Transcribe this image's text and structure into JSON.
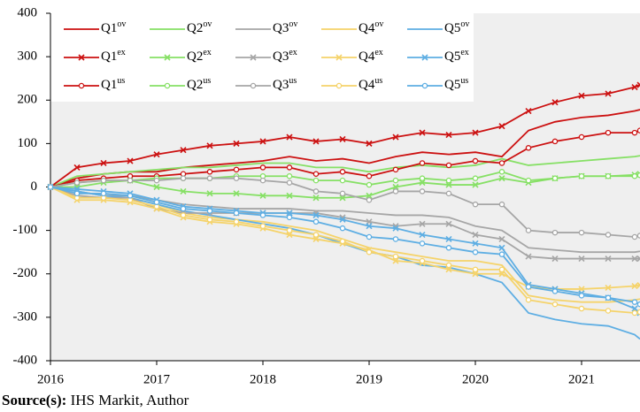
{
  "chart_data": {
    "type": "line",
    "x": [
      2016,
      2016.25,
      2016.5,
      2016.75,
      2017,
      2017.25,
      2017.5,
      2017.75,
      2018,
      2018.25,
      2018.5,
      2018.75,
      2019,
      2019.25,
      2019.5,
      2019.75,
      2020,
      2020.25,
      2020.5,
      2020.75,
      2021,
      2021.25,
      2021.5,
      2021.55
    ],
    "xlim": [
      2016,
      2021.55
    ],
    "xticks": [
      2016,
      2017,
      2018,
      2019,
      2020,
      2021
    ],
    "ylim": [
      -400,
      400
    ],
    "yticks": [
      -400,
      -300,
      -200,
      -100,
      0,
      100,
      200,
      300,
      400
    ],
    "series": [
      {
        "name": "Q1ov",
        "color": "#cc1111",
        "marker": "none",
        "values": [
          0,
          20,
          30,
          35,
          35,
          45,
          50,
          55,
          60,
          70,
          60,
          65,
          55,
          70,
          80,
          75,
          80,
          70,
          130,
          150,
          160,
          165,
          175,
          178
        ]
      },
      {
        "name": "Q2ov",
        "color": "#86e065",
        "marker": "none",
        "values": [
          0,
          25,
          30,
          35,
          40,
          45,
          45,
          50,
          55,
          55,
          45,
          45,
          35,
          45,
          50,
          45,
          50,
          65,
          50,
          55,
          60,
          65,
          70,
          72
        ]
      },
      {
        "name": "Q3ov",
        "color": "#a6a6a6",
        "marker": "none",
        "values": [
          0,
          -10,
          -20,
          -20,
          -30,
          -40,
          -45,
          -50,
          -50,
          -50,
          -55,
          -55,
          -60,
          -65,
          -65,
          -70,
          -90,
          -100,
          -140,
          -145,
          -150,
          -150,
          -150,
          -148
        ]
      },
      {
        "name": "Q4ov",
        "color": "#f5d36a",
        "marker": "none",
        "values": [
          0,
          -20,
          -25,
          -25,
          -40,
          -60,
          -70,
          -75,
          -80,
          -90,
          -100,
          -120,
          -140,
          -150,
          -160,
          -170,
          -170,
          -180,
          -250,
          -260,
          -265,
          -265,
          -260,
          -258
        ]
      },
      {
        "name": "Q5ov",
        "color": "#5eaee3",
        "marker": "none",
        "values": [
          0,
          -10,
          -20,
          -25,
          -40,
          -55,
          -65,
          -75,
          -85,
          -95,
          -110,
          -130,
          -150,
          -160,
          -180,
          -185,
          -200,
          -220,
          -290,
          -305,
          -315,
          -320,
          -340,
          -350
        ]
      },
      {
        "name": "Q1ex",
        "color": "#cc1111",
        "marker": "x",
        "values": [
          0,
          45,
          55,
          60,
          75,
          85,
          95,
          100,
          105,
          115,
          105,
          110,
          100,
          115,
          125,
          120,
          125,
          140,
          175,
          195,
          210,
          215,
          230,
          235
        ]
      },
      {
        "name": "Q2ex",
        "color": "#86e065",
        "marker": "x",
        "values": [
          0,
          0,
          10,
          15,
          0,
          -10,
          -15,
          -15,
          -20,
          -20,
          -25,
          -25,
          -20,
          0,
          10,
          5,
          5,
          20,
          10,
          20,
          25,
          25,
          28,
          30
        ]
      },
      {
        "name": "Q3ex",
        "color": "#a6a6a6",
        "marker": "x",
        "values": [
          0,
          -20,
          -25,
          -25,
          -50,
          -60,
          -60,
          -60,
          -60,
          -60,
          -60,
          -70,
          -80,
          -90,
          -85,
          -85,
          -110,
          -120,
          -160,
          -165,
          -165,
          -165,
          -165,
          -165
        ]
      },
      {
        "name": "Q4ex",
        "color": "#f5d36a",
        "marker": "x",
        "values": [
          0,
          -30,
          -30,
          -35,
          -50,
          -70,
          -80,
          -85,
          -95,
          -110,
          -120,
          -130,
          -145,
          -170,
          -175,
          -190,
          -200,
          -200,
          -230,
          -235,
          -235,
          -232,
          -228,
          -226
        ]
      },
      {
        "name": "Q5ex",
        "color": "#5eaee3",
        "marker": "x",
        "values": [
          0,
          -5,
          -10,
          -15,
          -30,
          -45,
          -50,
          -55,
          -60,
          -60,
          -65,
          -75,
          -90,
          -95,
          -110,
          -120,
          -130,
          -140,
          -225,
          -235,
          -245,
          -255,
          -280,
          -290
        ]
      },
      {
        "name": "Q1us",
        "color": "#cc1111",
        "marker": "o",
        "values": [
          0,
          15,
          20,
          25,
          25,
          30,
          35,
          40,
          45,
          45,
          30,
          35,
          25,
          40,
          55,
          50,
          60,
          55,
          90,
          105,
          115,
          125,
          125,
          130
        ]
      },
      {
        "name": "Q2us",
        "color": "#86e065",
        "marker": "o",
        "values": [
          0,
          10,
          15,
          15,
          20,
          20,
          20,
          25,
          25,
          25,
          15,
          15,
          5,
          15,
          20,
          15,
          20,
          35,
          15,
          20,
          25,
          25,
          25,
          27
        ]
      },
      {
        "name": "Q3us",
        "color": "#a6a6a6",
        "marker": "o",
        "values": [
          0,
          10,
          15,
          15,
          15,
          20,
          20,
          20,
          15,
          10,
          -10,
          -15,
          -30,
          -10,
          -10,
          -15,
          -40,
          -40,
          -100,
          -105,
          -105,
          -110,
          -115,
          -112
        ]
      },
      {
        "name": "Q4us",
        "color": "#f5d36a",
        "marker": "o",
        "values": [
          0,
          -25,
          -25,
          -30,
          -45,
          -65,
          -75,
          -80,
          -90,
          -100,
          -110,
          -125,
          -150,
          -160,
          -170,
          -180,
          -190,
          -190,
          -260,
          -270,
          -280,
          -285,
          -290,
          -288
        ]
      },
      {
        "name": "Q5us",
        "color": "#5eaee3",
        "marker": "o",
        "values": [
          0,
          -15,
          -15,
          -20,
          -35,
          -50,
          -55,
          -60,
          -65,
          -70,
          -80,
          -95,
          -115,
          -120,
          -130,
          -140,
          -150,
          -155,
          -230,
          -240,
          -250,
          -255,
          -265,
          -270
        ]
      }
    ],
    "source_label": "Source(s):",
    "source_text": "IHS Markit, Author"
  }
}
